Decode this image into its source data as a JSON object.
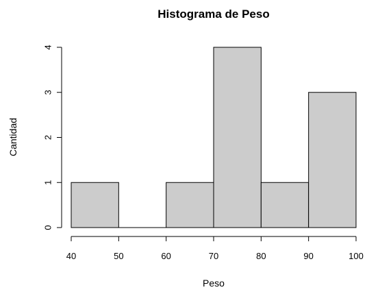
{
  "chart_data": {
    "type": "bar",
    "title": "Histograma de Peso",
    "xlabel": "Peso",
    "ylabel": "Cantidad",
    "bins": [
      {
        "from": 40,
        "to": 50,
        "count": 1
      },
      {
        "from": 50,
        "to": 60,
        "count": 0
      },
      {
        "from": 60,
        "to": 70,
        "count": 1
      },
      {
        "from": 70,
        "to": 80,
        "count": 4
      },
      {
        "from": 80,
        "to": 90,
        "count": 1
      },
      {
        "from": 90,
        "to": 100,
        "count": 3
      }
    ],
    "x_ticks": [
      "40",
      "50",
      "60",
      "70",
      "80",
      "90",
      "100"
    ],
    "y_ticks": [
      "0",
      "1",
      "2",
      "3",
      "4"
    ],
    "xlim": [
      40,
      100
    ],
    "ylim": [
      0,
      4
    ],
    "bar_color": "#cccccc",
    "grid": false,
    "legend": false
  }
}
